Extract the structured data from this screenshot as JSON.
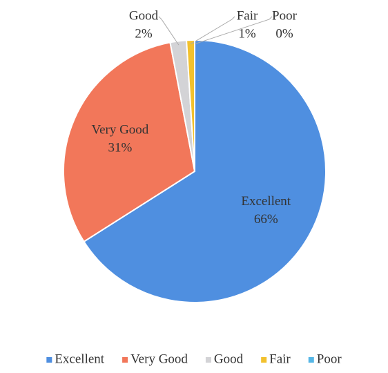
{
  "chart_data": {
    "type": "pie",
    "categories": [
      "Excellent",
      "Very Good",
      "Good",
      "Fair",
      "Poor"
    ],
    "values": [
      66,
      31,
      2,
      1,
      0
    ],
    "value_labels": [
      "66%",
      "31%",
      "2%",
      "1%",
      "0%"
    ],
    "colors": [
      "#4f8fe0",
      "#f2775a",
      "#d3d3d6",
      "#f2c12e",
      "#55b6e6"
    ],
    "legend": "bottom"
  }
}
